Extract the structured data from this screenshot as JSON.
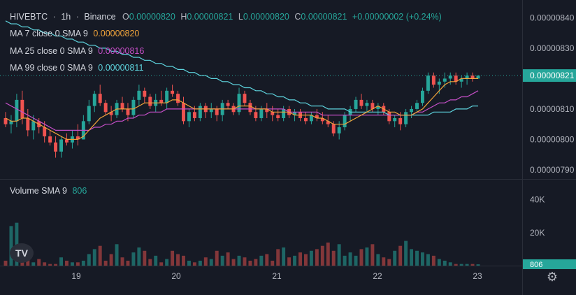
{
  "header": {
    "symbol": "HIVEBTC",
    "sep1": "·",
    "interval": "1h",
    "sep2": "·",
    "exchange": "Binance",
    "o_label": "O",
    "o_value": "0.00000820",
    "h_label": "H",
    "h_value": "0.00000821",
    "l_label": "L",
    "l_value": "0.00000820",
    "c_label": "C",
    "c_value": "0.00000821",
    "change": "+0.00000002 (+0.24%)"
  },
  "indicators": [
    {
      "label": "MA 7 close 0 SMA 9",
      "value": "0.00000820",
      "color": "#f0a33a"
    },
    {
      "label": "MA 25 close 0 SMA 9",
      "value": "0.00000816",
      "color": "#c64fc8"
    },
    {
      "label": "MA 99 close 0 SMA 9",
      "value": "0.00000811",
      "color": "#5ed4de"
    }
  ],
  "volume": {
    "label": "Volume SMA 9",
    "value": "806"
  },
  "colors": {
    "up": "#26a69a",
    "down": "#ef5350",
    "ma7": "#f0a33a",
    "ma25": "#c64fc8",
    "ma99": "#5ed4de",
    "bg": "#161a25"
  },
  "chart_data": {
    "type": "candlestick",
    "price_axis": {
      "ticks": [
        "0.00000840",
        "0.00000830",
        "0.00000810",
        "0.00000800",
        "0.00000790"
      ],
      "current_label": "0.00000821",
      "current_price": 8.21e-06,
      "range": [
        7.87e-06,
        8.44e-06
      ]
    },
    "volume_axis": {
      "ticks": [
        "40K",
        "20K"
      ],
      "current_label": "806",
      "range": [
        0,
        50000
      ]
    },
    "time_axis": {
      "ticks": [
        "19",
        "20",
        "21",
        "22",
        "23"
      ]
    },
    "candles": [
      [
        807,
        809,
        804,
        805
      ],
      [
        805,
        808,
        802,
        806
      ],
      [
        806,
        815,
        804,
        813
      ],
      [
        813,
        816,
        805,
        807
      ],
      [
        807,
        810,
        801,
        803
      ],
      [
        803,
        808,
        800,
        806
      ],
      [
        806,
        807,
        802,
        804
      ],
      [
        804,
        806,
        799,
        801
      ],
      [
        801,
        803,
        798,
        799
      ],
      [
        799,
        801,
        794,
        796
      ],
      [
        796,
        801,
        794,
        800
      ],
      [
        800,
        802,
        798,
        799
      ],
      [
        799,
        803,
        797,
        801
      ],
      [
        801,
        805,
        798,
        800
      ],
      [
        800,
        808,
        800,
        806
      ],
      [
        806,
        813,
        805,
        811
      ],
      [
        811,
        816,
        809,
        815
      ],
      [
        815,
        818,
        811,
        812
      ],
      [
        812,
        813,
        808,
        809
      ],
      [
        809,
        811,
        806,
        808
      ],
      [
        808,
        813,
        807,
        812
      ],
      [
        812,
        814,
        809,
        810
      ],
      [
        810,
        812,
        806,
        808
      ],
      [
        808,
        814,
        807,
        813
      ],
      [
        813,
        818,
        811,
        816
      ],
      [
        816,
        817,
        812,
        814
      ],
      [
        814,
        815,
        810,
        811
      ],
      [
        811,
        815,
        809,
        813
      ],
      [
        813,
        816,
        811,
        812
      ],
      [
        812,
        817,
        810,
        816
      ],
      [
        816,
        818,
        814,
        815
      ],
      [
        815,
        816,
        811,
        812
      ],
      [
        812,
        814,
        805,
        806
      ],
      [
        806,
        810,
        804,
        809
      ],
      [
        809,
        811,
        806,
        807
      ],
      [
        807,
        812,
        806,
        811
      ],
      [
        811,
        812,
        807,
        809
      ],
      [
        809,
        812,
        807,
        810
      ],
      [
        810,
        811,
        806,
        808
      ],
      [
        808,
        813,
        806,
        812
      ],
      [
        812,
        813,
        810,
        811
      ],
      [
        811,
        812,
        808,
        809
      ],
      [
        809,
        817,
        808,
        815
      ],
      [
        815,
        816,
        811,
        812
      ],
      [
        812,
        813,
        808,
        809
      ],
      [
        809,
        811,
        806,
        807
      ],
      [
        807,
        811,
        806,
        810
      ],
      [
        810,
        812,
        807,
        809
      ],
      [
        809,
        811,
        806,
        808
      ],
      [
        808,
        810,
        806,
        807
      ],
      [
        807,
        811,
        806,
        810
      ],
      [
        810,
        811,
        807,
        808
      ],
      [
        808,
        810,
        806,
        809
      ],
      [
        809,
        810,
        806,
        807
      ],
      [
        807,
        809,
        805,
        806
      ],
      [
        806,
        809,
        805,
        808
      ],
      [
        808,
        810,
        806,
        807
      ],
      [
        807,
        809,
        805,
        806
      ],
      [
        806,
        808,
        804,
        805
      ],
      [
        805,
        806,
        801,
        802
      ],
      [
        802,
        806,
        800,
        804
      ],
      [
        804,
        809,
        803,
        808
      ],
      [
        808,
        811,
        806,
        810
      ],
      [
        810,
        814,
        809,
        813
      ],
      [
        813,
        815,
        810,
        811
      ],
      [
        811,
        813,
        809,
        812
      ],
      [
        812,
        813,
        809,
        810
      ],
      [
        810,
        812,
        808,
        811
      ],
      [
        811,
        812,
        808,
        809
      ],
      [
        809,
        810,
        805,
        806
      ],
      [
        806,
        808,
        804,
        807
      ],
      [
        807,
        809,
        803,
        805
      ],
      [
        805,
        810,
        804,
        809
      ],
      [
        809,
        811,
        807,
        810
      ],
      [
        810,
        813,
        809,
        812
      ],
      [
        812,
        817,
        811,
        816
      ],
      [
        816,
        822,
        815,
        821
      ],
      [
        821,
        822,
        817,
        818
      ],
      [
        818,
        820,
        815,
        819
      ],
      [
        819,
        822,
        817,
        820
      ],
      [
        820,
        822,
        818,
        821
      ],
      [
        821,
        822,
        818,
        819
      ],
      [
        819,
        821,
        817,
        820
      ],
      [
        820,
        822,
        818,
        821
      ],
      [
        821,
        822,
        819,
        820
      ],
      [
        820,
        821,
        820,
        821
      ]
    ],
    "volume": [
      3,
      24,
      26,
      9,
      6,
      2,
      4,
      2,
      1,
      1,
      5,
      3,
      2,
      2,
      3,
      7,
      10,
      12,
      3,
      7,
      13,
      5,
      3,
      8,
      11,
      9,
      4,
      6,
      2,
      4,
      9,
      7,
      6,
      3,
      2,
      3,
      5,
      4,
      9,
      6,
      8,
      4,
      6,
      5,
      3,
      4,
      6,
      7,
      3,
      10,
      11,
      5,
      6,
      8,
      7,
      9,
      10,
      12,
      14,
      9,
      13,
      6,
      8,
      6,
      10,
      11,
      13,
      7,
      5,
      4,
      9,
      12,
      15,
      10,
      9,
      8,
      7,
      6,
      4,
      3,
      2,
      1,
      1,
      1,
      1,
      0.8
    ],
    "ma7": [
      8.07e-06,
      8.06e-06,
      8.06e-06,
      8.07e-06,
      8.07e-06,
      8.06e-06,
      8.05e-06,
      8.04e-06,
      8.03e-06,
      8.02e-06,
      8.01e-06,
      8e-06,
      8e-06,
      8e-06,
      8.01e-06,
      8.03e-06,
      8.05e-06,
      8.07e-06,
      8.08e-06,
      8.09e-06,
      8.1e-06,
      8.1e-06,
      8.1e-06,
      8.1e-06,
      8.11e-06,
      8.12e-06,
      8.12e-06,
      8.12e-06,
      8.12e-06,
      8.12e-06,
      8.13e-06,
      8.13e-06,
      8.12e-06,
      8.11e-06,
      8.1e-06,
      8.1e-06,
      8.1e-06,
      8.1e-06,
      8.1e-06,
      8.1e-06,
      8.1e-06,
      8.1e-06,
      8.11e-06,
      8.11e-06,
      8.11e-06,
      8.1e-06,
      8.1e-06,
      8.1e-06,
      8.09e-06,
      8.09e-06,
      8.09e-06,
      8.09e-06,
      8.08e-06,
      8.08e-06,
      8.08e-06,
      8.08e-06,
      8.07e-06,
      8.07e-06,
      8.06e-06,
      8.05e-06,
      8.05e-06,
      8.05e-06,
      8.06e-06,
      8.07e-06,
      8.08e-06,
      8.09e-06,
      8.1e-06,
      8.11e-06,
      8.1e-06,
      8.09e-06,
      8.09e-06,
      8.08e-06,
      8.08e-06,
      8.08e-06,
      8.09e-06,
      8.1e-06,
      8.12e-06,
      8.14e-06,
      8.16e-06,
      8.18e-06,
      8.19e-06,
      8.19e-06,
      8.2e-06,
      8.2e-06,
      8.2e-06,
      8.2e-06
    ],
    "ma25": [
      8.12e-06,
      8.11e-06,
      8.1e-06,
      8.09e-06,
      8.08e-06,
      8.07e-06,
      8.06e-06,
      8.05e-06,
      8.04e-06,
      8.03e-06,
      8.03e-06,
      8.03e-06,
      8.03e-06,
      8.03e-06,
      8.03e-06,
      8.03e-06,
      8.04e-06,
      8.04e-06,
      8.05e-06,
      8.05e-06,
      8.06e-06,
      8.06e-06,
      8.07e-06,
      8.07e-06,
      8.08e-06,
      8.08e-06,
      8.09e-06,
      8.09e-06,
      8.09e-06,
      8.1e-06,
      8.1e-06,
      8.1e-06,
      8.1e-06,
      8.1e-06,
      8.1e-06,
      8.1e-06,
      8.1e-06,
      8.1e-06,
      8.1e-06,
      8.1e-06,
      8.1e-06,
      8.1e-06,
      8.1e-06,
      8.1e-06,
      8.1e-06,
      8.1e-06,
      8.1e-06,
      8.1e-06,
      8.1e-06,
      8.1e-06,
      8.1e-06,
      8.09e-06,
      8.09e-06,
      8.09e-06,
      8.09e-06,
      8.09e-06,
      8.09e-06,
      8.08e-06,
      8.08e-06,
      8.08e-06,
      8.08e-06,
      8.08e-06,
      8.08e-06,
      8.08e-06,
      8.08e-06,
      8.08e-06,
      8.08e-06,
      8.08e-06,
      8.08e-06,
      8.08e-06,
      8.08e-06,
      8.08e-06,
      8.08e-06,
      8.08e-06,
      8.09e-06,
      8.09e-06,
      8.1e-06,
      8.11e-06,
      8.12e-06,
      8.12e-06,
      8.13e-06,
      8.13e-06,
      8.14e-06,
      8.14e-06,
      8.15e-06,
      8.16e-06
    ],
    "ma99": [
      8.39e-06,
      8.38e-06,
      8.38e-06,
      8.37e-06,
      8.37e-06,
      8.36e-06,
      8.36e-06,
      8.35e-06,
      8.35e-06,
      8.34e-06,
      8.34e-06,
      8.33e-06,
      8.33e-06,
      8.32e-06,
      8.32e-06,
      8.31e-06,
      8.31e-06,
      8.3e-06,
      8.3e-06,
      8.29e-06,
      8.29e-06,
      8.28e-06,
      8.28e-06,
      8.27e-06,
      8.27e-06,
      8.26e-06,
      8.26e-06,
      8.25e-06,
      8.25e-06,
      8.24e-06,
      8.24e-06,
      8.23e-06,
      8.23e-06,
      8.22e-06,
      8.22e-06,
      8.21e-06,
      8.21e-06,
      8.2e-06,
      8.2e-06,
      8.19e-06,
      8.19e-06,
      8.18e-06,
      8.18e-06,
      8.17e-06,
      8.17e-06,
      8.16e-06,
      8.16e-06,
      8.15e-06,
      8.15e-06,
      8.14e-06,
      8.14e-06,
      8.13e-06,
      8.13e-06,
      8.12e-06,
      8.12e-06,
      8.11e-06,
      8.11e-06,
      8.11e-06,
      8.1e-06,
      8.1e-06,
      8.1e-06,
      8.1e-06,
      8.09e-06,
      8.09e-06,
      8.09e-06,
      8.09e-06,
      8.09e-06,
      8.09e-06,
      8.09e-06,
      8.08e-06,
      8.08e-06,
      8.08e-06,
      8.08e-06,
      8.08e-06,
      8.08e-06,
      8.08e-06,
      8.08e-06,
      8.09e-06,
      8.09e-06,
      8.09e-06,
      8.09e-06,
      8.1e-06,
      8.1e-06,
      8.1e-06,
      8.11e-06,
      8.11e-06
    ]
  }
}
